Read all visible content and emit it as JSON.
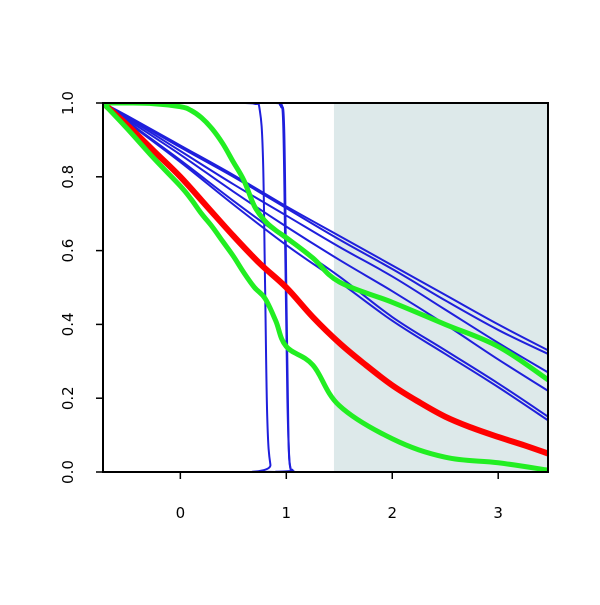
{
  "chart_data": {
    "type": "line",
    "title": "",
    "xlabel": "",
    "ylabel": "",
    "xlim": [
      -0.73,
      3.47
    ],
    "ylim": [
      0,
      1
    ],
    "grid": false,
    "legend": "none",
    "x_ticks": [
      0,
      1,
      2,
      3
    ],
    "x_tick_labels": [
      "0",
      "1",
      "2",
      "3"
    ],
    "y_ticks": [
      0,
      0.2,
      0.4,
      0.6,
      0.8,
      1
    ],
    "y_tick_labels": [
      "0.0",
      "0.2",
      "0.4",
      "0.6",
      "0.8",
      "1.0"
    ],
    "shaded_region": {
      "x_start": 1.45,
      "x_end": 3.47,
      "color": "#dde9ea"
    },
    "colors": {
      "blue": "#1f1fdc",
      "red": "#ff0000",
      "green": "#22ee22"
    },
    "series": [
      {
        "color": "blue",
        "x": [
          -0.73,
          -0.5,
          0,
          0.5,
          1,
          1.5,
          2,
          2.5,
          3,
          3.47
        ],
        "y": [
          1,
          0.963,
          0.88,
          0.8,
          0.715,
          0.63,
          0.55,
          0.465,
          0.385,
          0.32
        ]
      },
      {
        "color": "blue",
        "x": [
          -0.73,
          -0.5,
          0,
          0.5,
          1,
          1.5,
          2,
          2.5,
          3,
          3.47
        ],
        "y": [
          1,
          0.965,
          0.885,
          0.805,
          0.72,
          0.64,
          0.56,
          0.48,
          0.4,
          0.33
        ]
      },
      {
        "color": "blue",
        "x": [
          -0.73,
          -0.5,
          0,
          0.5,
          1,
          1.5,
          2,
          2.5,
          3,
          3.47
        ],
        "y": [
          1,
          0.96,
          0.87,
          0.78,
          0.695,
          0.61,
          0.53,
          0.44,
          0.35,
          0.27
        ]
      },
      {
        "color": "blue",
        "x": [
          -0.73,
          -0.5,
          0,
          0.5,
          1,
          1.5,
          2,
          2.5,
          3,
          3.47
        ],
        "y": [
          1,
          0.955,
          0.86,
          0.76,
          0.665,
          0.575,
          0.49,
          0.4,
          0.305,
          0.22
        ]
      },
      {
        "color": "blue",
        "x": [
          -0.73,
          -0.5,
          0,
          0.5,
          1,
          1.5,
          2,
          2.5,
          3,
          3.47
        ],
        "y": [
          1,
          0.95,
          0.845,
          0.735,
          0.63,
          0.53,
          0.42,
          0.33,
          0.24,
          0.15
        ]
      },
      {
        "color": "blue",
        "x": [
          -0.73,
          -0.5,
          0,
          0.5,
          1,
          1.5,
          2,
          2.5,
          3,
          3.47
        ],
        "y": [
          1,
          0.948,
          0.84,
          0.725,
          0.615,
          0.515,
          0.41,
          0.32,
          0.23,
          0.14
        ]
      },
      {
        "color": "blue",
        "x": [
          -0.73,
          0,
          0.5,
          0.7,
          0.75,
          0.78,
          0.8,
          0.82,
          0.85,
          0.9,
          3.47
        ],
        "y": [
          1,
          1,
          1,
          0.998,
          0.98,
          0.85,
          0.5,
          0.15,
          0.02,
          0,
          0
        ]
      },
      {
        "color": "blue",
        "x": [
          -0.73,
          0,
          0.5,
          0.9,
          0.94,
          0.97,
          0.99,
          1.01,
          1.03,
          1.06,
          1.1,
          3.47
        ],
        "y": [
          1,
          1,
          1,
          1,
          0.995,
          0.95,
          0.6,
          0.2,
          0.03,
          0.005,
          0,
          0
        ]
      },
      {
        "color": "blue",
        "x": [
          -0.73,
          0,
          0.5,
          0.9,
          0.95,
          0.98,
          1.0,
          1.02,
          1.04,
          1.07,
          1.1,
          3.47
        ],
        "y": [
          1,
          1,
          1,
          1,
          0.99,
          0.93,
          0.5,
          0.1,
          0.01,
          0.002,
          0,
          0
        ]
      },
      {
        "color": "red",
        "x": [
          -0.73,
          -0.5,
          -0.25,
          0,
          0.25,
          0.5,
          0.75,
          1,
          1.25,
          1.5,
          1.75,
          2,
          2.25,
          2.5,
          2.75,
          3,
          3.25,
          3.47
        ],
        "y": [
          1,
          0.94,
          0.87,
          0.8,
          0.72,
          0.64,
          0.565,
          0.5,
          0.42,
          0.35,
          0.29,
          0.235,
          0.19,
          0.15,
          0.12,
          0.095,
          0.072,
          0.05
        ]
      },
      {
        "color": "green",
        "x": [
          -0.73,
          -0.5,
          -0.25,
          0,
          0.1,
          0.2,
          0.3,
          0.4,
          0.5,
          0.6,
          0.7,
          0.8,
          0.9,
          1.0,
          1.25,
          1.5,
          2,
          2.5,
          3,
          3.47
        ],
        "y": [
          1,
          0.93,
          0.85,
          0.775,
          0.74,
          0.7,
          0.665,
          0.625,
          0.585,
          0.54,
          0.5,
          0.47,
          0.41,
          0.34,
          0.29,
          0.18,
          0.09,
          0.04,
          0.025,
          0.005
        ]
      },
      {
        "color": "green",
        "x": [
          -0.73,
          -0.5,
          -0.25,
          0,
          0.1,
          0.2,
          0.3,
          0.4,
          0.5,
          0.6,
          0.7,
          0.8,
          0.9,
          1.0,
          1.25,
          1.5,
          2,
          2.5,
          3,
          3.47
        ],
        "y": [
          1,
          1,
          0.998,
          0.99,
          0.98,
          0.96,
          0.93,
          0.89,
          0.84,
          0.79,
          0.72,
          0.68,
          0.655,
          0.635,
          0.58,
          0.515,
          0.46,
          0.4,
          0.34,
          0.25
        ]
      }
    ]
  }
}
